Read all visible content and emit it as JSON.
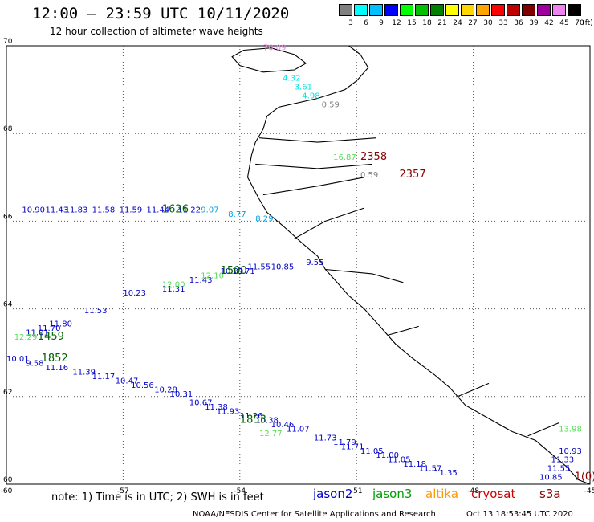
{
  "header": {
    "title": "12:00 — 23:59 UTC 10/11/2020",
    "subtitle": "12 hour collection of altimeter wave heights"
  },
  "colorbar": {
    "unit": "(ft)",
    "items": [
      {
        "label": "3",
        "color": "#808080"
      },
      {
        "label": "6",
        "color": "#00ffff"
      },
      {
        "label": "9",
        "color": "#00bfff"
      },
      {
        "label": "12",
        "color": "#0000ff"
      },
      {
        "label": "15",
        "color": "#00ff00"
      },
      {
        "label": "18",
        "color": "#00c000"
      },
      {
        "label": "21",
        "color": "#008000"
      },
      {
        "label": "24",
        "color": "#ffff00"
      },
      {
        "label": "27",
        "color": "#ffd700"
      },
      {
        "label": "30",
        "color": "#ffa500"
      },
      {
        "label": "33",
        "color": "#ff0000"
      },
      {
        "label": "36",
        "color": "#c00000"
      },
      {
        "label": "39",
        "color": "#800000"
      },
      {
        "label": "42",
        "color": "#a000a0"
      },
      {
        "label": "45",
        "color": "#ee82ee"
      },
      {
        "label": "70",
        "color": "#000000"
      }
    ]
  },
  "map": {
    "lon_ticks": [
      "-60",
      "-57",
      "-54",
      "-51",
      "-48",
      "-45"
    ],
    "lat_ticks": [
      "70",
      "68",
      "66",
      "64",
      "62",
      "60"
    ],
    "grid": true
  },
  "tracks": [
    {
      "color": "#ee82ee",
      "points": [
        {
          "lon": -53.4,
          "lat": 69.9,
          "label": "70.09"
        }
      ]
    },
    {
      "color": "#00e5e5",
      "points": [
        {
          "lon": -52.9,
          "lat": 69.2,
          "label": "4.32"
        },
        {
          "lon": -52.6,
          "lat": 69.0,
          "label": "3.61"
        },
        {
          "lon": -52.4,
          "lat": 68.8,
          "label": "4.98"
        }
      ]
    },
    {
      "color": "#808080",
      "points": [
        {
          "lon": -51.9,
          "lat": 68.6,
          "label": "0.59"
        }
      ]
    },
    {
      "color": "#808080",
      "points": [
        {
          "lon": -50.9,
          "lat": 67.0,
          "label": "0.59"
        }
      ]
    },
    {
      "color": "#55dd55",
      "points": [
        {
          "lon": -51.6,
          "lat": 67.4,
          "label": "16.87"
        }
      ]
    },
    {
      "color": "#0000c8",
      "points": [
        {
          "lon": -59.6,
          "lat": 66.2,
          "label": "10.90"
        },
        {
          "lon": -59.0,
          "lat": 66.2,
          "label": "11.43"
        },
        {
          "lon": -58.5,
          "lat": 66.2,
          "label": "11.83"
        },
        {
          "lon": -57.8,
          "lat": 66.2,
          "label": "11.58"
        },
        {
          "lon": -57.1,
          "lat": 66.2,
          "label": "11.59"
        },
        {
          "lon": -56.4,
          "lat": 66.2,
          "label": "11.44"
        },
        {
          "lon": -55.6,
          "lat": 66.2,
          "label": "11.22"
        }
      ]
    },
    {
      "color": "#00a0e0",
      "points": [
        {
          "lon": -55.0,
          "lat": 66.2,
          "label": "9.07"
        },
        {
          "lon": -54.3,
          "lat": 66.1,
          "label": "8.77"
        },
        {
          "lon": -53.6,
          "lat": 66.0,
          "label": "8.29"
        }
      ]
    },
    {
      "color": "#0000c8",
      "points": [
        {
          "lon": -57.0,
          "lat": 64.3,
          "label": "10.23"
        },
        {
          "lon": -56.0,
          "lat": 64.4,
          "label": "11.31"
        },
        {
          "lon": -55.3,
          "lat": 64.6,
          "label": "11.43"
        },
        {
          "lon": -54.5,
          "lat": 64.8,
          "label": "10.89"
        },
        {
          "lon": -54.2,
          "lat": 64.8,
          "label": "10.71"
        },
        {
          "lon": -53.8,
          "lat": 64.9,
          "label": "11.55"
        },
        {
          "lon": -53.2,
          "lat": 64.9,
          "label": "10.85"
        },
        {
          "lon": -52.3,
          "lat": 65.0,
          "label": "9.55"
        }
      ]
    },
    {
      "color": "#55dd55",
      "points": [
        {
          "lon": -56.0,
          "lat": 64.5,
          "label": "12.00"
        },
        {
          "lon": -55.0,
          "lat": 64.7,
          "label": "12.10"
        }
      ]
    },
    {
      "color": "#0000c8",
      "points": [
        {
          "lon": -58.0,
          "lat": 63.9,
          "label": "11.53"
        },
        {
          "lon": -58.9,
          "lat": 63.6,
          "label": "11.80"
        },
        {
          "lon": -59.2,
          "lat": 63.5,
          "label": "11.70"
        },
        {
          "lon": -59.5,
          "lat": 63.4,
          "label": "11.01"
        }
      ]
    },
    {
      "color": "#55dd55",
      "points": [
        {
          "lon": -59.8,
          "lat": 63.3,
          "label": "12.29"
        }
      ]
    },
    {
      "color": "#0000c8",
      "points": [
        {
          "lon": -60.0,
          "lat": 62.8,
          "label": "10.01"
        },
        {
          "lon": -59.5,
          "lat": 62.7,
          "label": "9.58"
        },
        {
          "lon": -59.0,
          "lat": 62.6,
          "label": "11.16"
        },
        {
          "lon": -58.3,
          "lat": 62.5,
          "label": "11.39"
        },
        {
          "lon": -57.8,
          "lat": 62.4,
          "label": "11.17"
        },
        {
          "lon": -57.2,
          "lat": 62.3,
          "label": "10.47"
        },
        {
          "lon": -56.8,
          "lat": 62.2,
          "label": "10.56"
        },
        {
          "lon": -56.2,
          "lat": 62.1,
          "label": "10.28"
        },
        {
          "lon": -55.8,
          "lat": 62.0,
          "label": "10.31"
        },
        {
          "lon": -55.3,
          "lat": 61.8,
          "label": "10.67"
        },
        {
          "lon": -54.9,
          "lat": 61.7,
          "label": "11.38"
        },
        {
          "lon": -54.6,
          "lat": 61.6,
          "label": "11.93"
        },
        {
          "lon": -54.0,
          "lat": 61.5,
          "label": "11.26"
        },
        {
          "lon": -53.6,
          "lat": 61.4,
          "label": "10.38"
        },
        {
          "lon": -53.2,
          "lat": 61.3,
          "label": "10.46"
        },
        {
          "lon": -52.8,
          "lat": 61.2,
          "label": "11.07"
        },
        {
          "lon": -52.1,
          "lat": 61.0,
          "label": "11.73"
        },
        {
          "lon": -51.6,
          "lat": 60.9,
          "label": "11.79"
        },
        {
          "lon": -51.4,
          "lat": 60.8,
          "label": "11.71"
        },
        {
          "lon": -50.9,
          "lat": 60.7,
          "label": "11.05"
        },
        {
          "lon": -50.5,
          "lat": 60.6,
          "label": "11.00"
        },
        {
          "lon": -50.2,
          "lat": 60.5,
          "label": "11.05"
        },
        {
          "lon": -49.8,
          "lat": 60.4,
          "label": "11.18"
        },
        {
          "lon": -49.4,
          "lat": 60.3,
          "label": "11.57"
        },
        {
          "lon": -49.0,
          "lat": 60.2,
          "label": "11.35"
        }
      ]
    },
    {
      "color": "#55dd55",
      "points": [
        {
          "lon": -53.5,
          "lat": 61.1,
          "label": "12.77"
        },
        {
          "lon": -45.8,
          "lat": 61.2,
          "label": "13.98"
        }
      ]
    },
    {
      "color": "#0000c8",
      "points": [
        {
          "lon": -45.8,
          "lat": 60.7,
          "label": "10.93"
        },
        {
          "lon": -46.0,
          "lat": 60.5,
          "label": "11.33"
        },
        {
          "lon": -46.1,
          "lat": 60.3,
          "label": "11.55"
        },
        {
          "lon": -46.3,
          "lat": 60.1,
          "label": "10.85"
        }
      ]
    }
  ],
  "passes": [
    {
      "label": "2358",
      "color": "#8b0000",
      "lon": -50.9,
      "lat": 67.4
    },
    {
      "label": "2357",
      "color": "#8b0000",
      "lon": -49.9,
      "lat": 67.0
    },
    {
      "label": "1626",
      "color": "#006400",
      "lon": -56.0,
      "lat": 66.2
    },
    {
      "label": "1500",
      "color": "#006400",
      "lon": -54.5,
      "lat": 64.8
    },
    {
      "label": "1459",
      "color": "#006400",
      "lon": -59.2,
      "lat": 63.3
    },
    {
      "label": "1852",
      "color": "#006400",
      "lon": -59.1,
      "lat": 62.8
    },
    {
      "label": "1853",
      "color": "#006400",
      "lon": -54.0,
      "lat": 61.4
    },
    {
      "label": "1(0)",
      "color": "#8b0000",
      "lon": -45.4,
      "lat": 60.1
    }
  ],
  "footer": {
    "note": "note: 1) Time is in UTC; 2) SWH is in feet",
    "satellites": [
      {
        "name": "jason2",
        "color": "#0000cc"
      },
      {
        "name": "jason3",
        "color": "#00a000"
      },
      {
        "name": "altika",
        "color": "#ff9900"
      },
      {
        "name": "cryosat",
        "color": "#cc0000"
      },
      {
        "name": "s3a",
        "color": "#8b0000"
      }
    ],
    "credit": "NOAA/NESDIS Center for Satellite Applications and Research",
    "timestamp": "Oct 13 18:53:45 UTC 2020"
  }
}
